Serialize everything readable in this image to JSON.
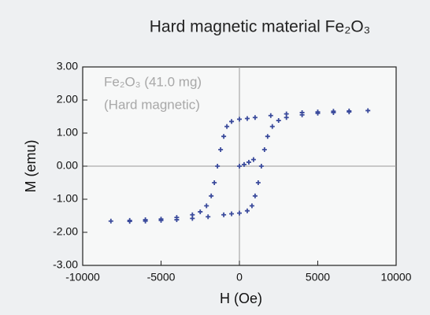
{
  "chart_data": {
    "type": "scatter",
    "title": "Hard magnetic material Fe₂O₃",
    "annotations": [
      "Fe₂O₃ (41.0 mg)",
      "(Hard magnetic)"
    ],
    "x_label": "H (Oe)",
    "y_label": "M (emu)",
    "color": "#3b4b9c",
    "zero_lines": true,
    "xlim": [
      -10000,
      10000
    ],
    "xticks": [
      -10000,
      -5000,
      0,
      5000,
      10000
    ],
    "ylim": [
      -3,
      3
    ],
    "yticks": [
      {
        "value": -3,
        "label": "-3.00"
      },
      {
        "value": -2,
        "label": "-2.00"
      },
      {
        "value": -1,
        "label": "-1.00"
      },
      {
        "value": 0,
        "label": "0.00"
      },
      {
        "value": 1,
        "label": "1.00"
      },
      {
        "value": 2,
        "label": "2.00"
      },
      {
        "value": 3,
        "label": "3.00"
      }
    ],
    "x": [
      8200,
      7000,
      6000,
      5000,
      4000,
      3000,
      2000,
      1000,
      500,
      0,
      -500,
      -800,
      -1000,
      -1200,
      -1400,
      -1600,
      -1800,
      -2100,
      -2500,
      -3000,
      -4000,
      -5000,
      -6000,
      -7000,
      -8200,
      -7000,
      -6000,
      -5000,
      -4000,
      -3000,
      -2000,
      -1000,
      -500,
      0,
      500,
      800,
      1000,
      1200,
      1400,
      1600,
      1800,
      2100,
      2500,
      3000,
      4000,
      5000,
      6000,
      7000,
      0,
      300,
      600,
      900
    ],
    "values": [
      1.68,
      1.67,
      1.66,
      1.64,
      1.62,
      1.58,
      1.53,
      1.47,
      1.44,
      1.42,
      1.35,
      1.2,
      0.9,
      0.5,
      0.0,
      -0.5,
      -0.9,
      -1.2,
      -1.38,
      -1.47,
      -1.55,
      -1.6,
      -1.62,
      -1.64,
      -1.66,
      -1.67,
      -1.66,
      -1.64,
      -1.62,
      -1.58,
      -1.53,
      -1.47,
      -1.44,
      -1.42,
      -1.35,
      -1.2,
      -0.9,
      -0.5,
      0.0,
      0.5,
      0.9,
      1.2,
      1.38,
      1.47,
      1.55,
      1.6,
      1.62,
      1.64,
      0.0,
      0.05,
      0.12,
      0.2
    ]
  }
}
